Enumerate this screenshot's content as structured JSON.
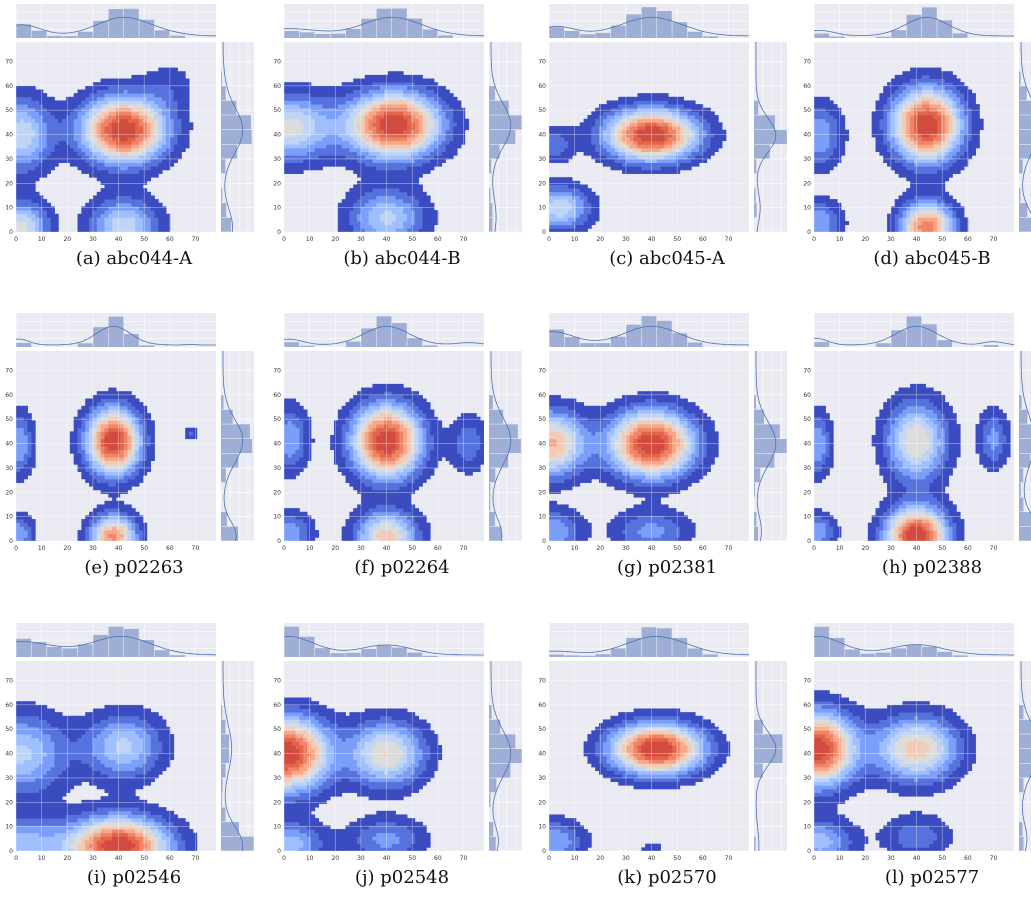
{
  "chart_data": [
    {
      "type": "density",
      "subtitle": "(a) abc044-A",
      "x_ticks": [
        0,
        10,
        20,
        30,
        40,
        50,
        60,
        70
      ],
      "y_ticks": [
        0,
        10,
        20,
        30,
        40,
        50,
        60,
        70
      ],
      "xlim": [
        0,
        78
      ],
      "ylim": [
        0,
        78
      ],
      "blobs": [
        [
          42,
          42,
          11,
          9,
          1.0
        ],
        [
          2,
          40,
          8,
          10,
          0.45
        ],
        [
          2,
          2,
          7,
          7,
          0.5
        ],
        [
          42,
          2,
          9,
          8,
          0.45
        ],
        [
          60,
          60,
          7,
          7,
          0.1
        ]
      ],
      "grid": true
    },
    {
      "type": "density",
      "subtitle": "(b) abc044-B",
      "x_ticks": [
        0,
        10,
        20,
        30,
        40,
        50,
        60,
        70
      ],
      "y_ticks": [
        0,
        10,
        20,
        30,
        40,
        50,
        60,
        70
      ],
      "xlim": [
        0,
        78
      ],
      "ylim": [
        0,
        78
      ],
      "blobs": [
        [
          43,
          44,
          12,
          9,
          1.0
        ],
        [
          2,
          43,
          12,
          9,
          0.5
        ],
        [
          40,
          6,
          10,
          8,
          0.4
        ]
      ],
      "grid": true
    },
    {
      "type": "density",
      "subtitle": "(c) abc045-A",
      "x_ticks": [
        0,
        10,
        20,
        30,
        40,
        50,
        60,
        70
      ],
      "y_ticks": [
        0,
        10,
        20,
        30,
        40,
        50,
        60,
        70
      ],
      "xlim": [
        0,
        78
      ],
      "ylim": [
        0,
        78
      ],
      "blobs": [
        [
          40,
          40,
          12,
          7,
          1.0
        ],
        [
          4,
          10,
          8,
          6,
          0.45
        ],
        [
          2,
          36,
          5,
          5,
          0.2
        ]
      ],
      "grid": true
    },
    {
      "type": "density",
      "subtitle": "(d) abc045-B",
      "x_ticks": [
        0,
        10,
        20,
        30,
        40,
        50,
        60,
        70
      ],
      "y_ticks": [
        0,
        10,
        20,
        30,
        40,
        50,
        60,
        70
      ],
      "xlim": [
        0,
        78
      ],
      "ylim": [
        0,
        78
      ],
      "blobs": [
        [
          44,
          44,
          9,
          10,
          1.0
        ],
        [
          44,
          2,
          7,
          7,
          0.8
        ],
        [
          2,
          40,
          6,
          9,
          0.3
        ],
        [
          2,
          4,
          6,
          6,
          0.3
        ]
      ],
      "grid": true
    },
    {
      "type": "density",
      "subtitle": "(e) p02263",
      "x_ticks": [
        0,
        10,
        20,
        30,
        40,
        50,
        60,
        70
      ],
      "y_ticks": [
        0,
        10,
        20,
        30,
        40,
        50,
        60,
        70
      ],
      "xlim": [
        0,
        78
      ],
      "ylim": [
        0,
        78
      ],
      "blobs": [
        [
          38,
          41,
          7,
          9,
          1.0
        ],
        [
          38,
          2,
          6,
          6,
          0.75
        ],
        [
          1,
          40,
          4,
          9,
          0.3
        ],
        [
          1,
          3,
          4,
          5,
          0.3
        ],
        [
          68,
          44,
          2,
          2,
          0.15
        ]
      ],
      "grid": true
    },
    {
      "type": "density",
      "subtitle": "(f) p02264",
      "x_ticks": [
        0,
        10,
        20,
        30,
        40,
        50,
        60,
        70
      ],
      "y_ticks": [
        0,
        10,
        20,
        30,
        40,
        50,
        60,
        70
      ],
      "xlim": [
        0,
        78
      ],
      "ylim": [
        0,
        78
      ],
      "blobs": [
        [
          40,
          41,
          9,
          10,
          1.0
        ],
        [
          40,
          2,
          8,
          7,
          0.6
        ],
        [
          2,
          42,
          5,
          9,
          0.3
        ],
        [
          2,
          3,
          6,
          6,
          0.3
        ],
        [
          72,
          40,
          5,
          8,
          0.2
        ]
      ],
      "grid": true
    },
    {
      "type": "density",
      "subtitle": "(g) p02381",
      "x_ticks": [
        0,
        10,
        20,
        30,
        40,
        50,
        60,
        70
      ],
      "y_ticks": [
        0,
        10,
        20,
        30,
        40,
        50,
        60,
        70
      ],
      "xlim": [
        0,
        78
      ],
      "ylim": [
        0,
        78
      ],
      "blobs": [
        [
          40,
          40,
          11,
          9,
          1.0
        ],
        [
          1,
          40,
          9,
          9,
          0.65
        ],
        [
          1,
          4,
          8,
          6,
          0.3
        ],
        [
          40,
          4,
          10,
          6,
          0.25
        ]
      ],
      "grid": true
    },
    {
      "type": "density",
      "subtitle": "(h) p02388",
      "x_ticks": [
        0,
        10,
        20,
        30,
        40,
        50,
        60,
        70
      ],
      "y_ticks": [
        0,
        10,
        20,
        30,
        40,
        50,
        60,
        70
      ],
      "xlim": [
        0,
        78
      ],
      "ylim": [
        0,
        78
      ],
      "blobs": [
        [
          40,
          2,
          8,
          8,
          1.0
        ],
        [
          40,
          41,
          8,
          11,
          0.55
        ],
        [
          1,
          40,
          4,
          9,
          0.3
        ],
        [
          1,
          4,
          5,
          5,
          0.3
        ],
        [
          70,
          42,
          4,
          8,
          0.25
        ]
      ],
      "grid": true
    },
    {
      "type": "density",
      "subtitle": "(i) p02546",
      "x_ticks": [
        0,
        10,
        20,
        30,
        40,
        50,
        60,
        70
      ],
      "y_ticks": [
        0,
        10,
        20,
        30,
        40,
        50,
        60,
        70
      ],
      "xlim": [
        0,
        78
      ],
      "ylim": [
        0,
        78
      ],
      "blobs": [
        [
          40,
          2,
          13,
          8,
          1.0
        ],
        [
          2,
          40,
          12,
          11,
          0.4
        ],
        [
          42,
          43,
          10,
          9,
          0.4
        ],
        [
          2,
          2,
          12,
          8,
          0.35
        ]
      ],
      "grid": true
    },
    {
      "type": "density",
      "subtitle": "(j) p02548",
      "x_ticks": [
        0,
        10,
        20,
        30,
        40,
        50,
        60,
        70
      ],
      "y_ticks": [
        0,
        10,
        20,
        30,
        40,
        50,
        60,
        70
      ],
      "xlim": [
        0,
        78
      ],
      "ylim": [
        0,
        78
      ],
      "blobs": [
        [
          1,
          40,
          11,
          10,
          1.0
        ],
        [
          40,
          40,
          10,
          9,
          0.55
        ],
        [
          2,
          3,
          9,
          6,
          0.35
        ],
        [
          40,
          5,
          10,
          6,
          0.25
        ]
      ],
      "grid": true
    },
    {
      "type": "density",
      "subtitle": "(k) p02570",
      "x_ticks": [
        0,
        10,
        20,
        30,
        40,
        50,
        60,
        70
      ],
      "y_ticks": [
        0,
        10,
        20,
        30,
        40,
        50,
        60,
        70
      ],
      "xlim": [
        0,
        78
      ],
      "ylim": [
        0,
        78
      ],
      "blobs": [
        [
          42,
          42,
          12,
          7,
          1.0
        ],
        [
          2,
          4,
          8,
          6,
          0.3
        ],
        [
          40,
          1,
          3,
          2,
          0.12
        ]
      ],
      "grid": true
    },
    {
      "type": "density",
      "subtitle": "(l) p02577",
      "x_ticks": [
        0,
        10,
        20,
        30,
        40,
        50,
        60,
        70
      ],
      "y_ticks": [
        0,
        10,
        20,
        30,
        40,
        50,
        60,
        70
      ],
      "xlim": [
        0,
        78
      ],
      "ylim": [
        0,
        78
      ],
      "blobs": [
        [
          1,
          42,
          10,
          10,
          1.0
        ],
        [
          40,
          42,
          11,
          9,
          0.6
        ],
        [
          2,
          4,
          9,
          6,
          0.35
        ],
        [
          40,
          6,
          9,
          6,
          0.2
        ]
      ],
      "grid": true
    }
  ],
  "colors": {
    "panel_bg": "#eaeaf2",
    "grid": "#ffffff",
    "hist_fill": "#9eaed5",
    "kde_line": "#4c72b0",
    "levels": [
      "#3b4cc0",
      "#5673dd",
      "#7b9ff9",
      "#9fbfff",
      "#c0d4f5",
      "#dddcdc",
      "#f2cbb7",
      "#f7a889",
      "#ee8468",
      "#e36448",
      "#d24b40"
    ]
  }
}
